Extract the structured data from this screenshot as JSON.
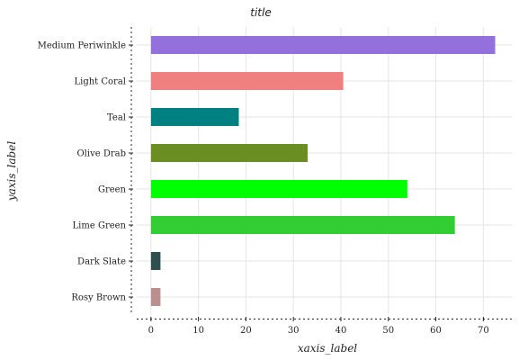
{
  "chart_data": {
    "type": "bar",
    "orientation": "horizontal",
    "title": "title",
    "xlabel": "xaxis_label",
    "ylabel": "yaxis_label",
    "categories": [
      "Rosy Brown",
      "Dark Slate",
      "Lime Green",
      "Green",
      "Olive Drab",
      "Teal",
      "Light Coral",
      "Medium Periwinkle"
    ],
    "values": [
      2,
      2,
      64,
      54,
      33,
      18.5,
      40.5,
      72.5
    ],
    "colors": [
      "#bc8f8f",
      "#2f4f4f",
      "#32cd32",
      "#00ff00",
      "#6b8e23",
      "#008080",
      "#f08080",
      "#9370db"
    ],
    "xlim": [
      -3,
      76
    ],
    "xticks": [
      0,
      10,
      20,
      30,
      40,
      50,
      60,
      70
    ],
    "xtick_labels": [
      "0",
      "10",
      "20",
      "30",
      "40",
      "50",
      "60",
      "70"
    ],
    "grid": true,
    "legend": "none"
  }
}
